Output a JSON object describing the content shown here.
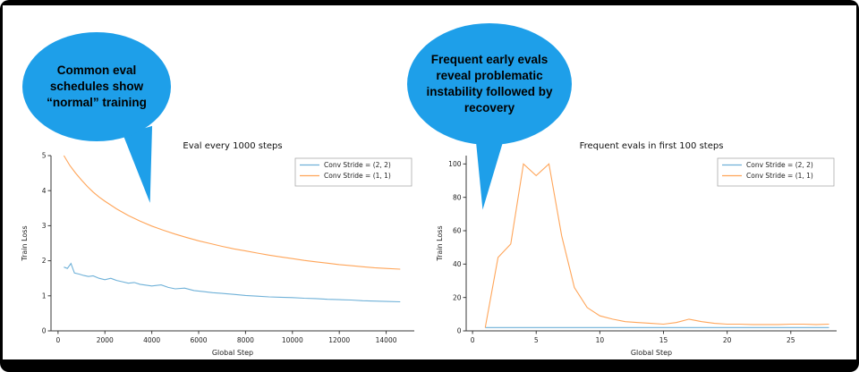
{
  "slide": {
    "background": "#ffffff",
    "frame_color": "#000000"
  },
  "callouts": [
    {
      "text": "Common eval schedules show “normal” training",
      "color": "#1E9FE9"
    },
    {
      "text": "Frequent early evals reveal problematic instability followed by recovery",
      "color": "#1E9FE9"
    }
  ],
  "chart_data": [
    {
      "type": "line",
      "title": "Eval every 1000 steps",
      "xlabel": "Global Step",
      "ylabel": "Train Loss",
      "xlim": [
        -300,
        15200
      ],
      "ylim": [
        0,
        5
      ],
      "xticks": [
        0,
        2000,
        4000,
        6000,
        8000,
        10000,
        12000,
        14000
      ],
      "yticks": [
        0,
        1,
        2,
        3,
        4,
        5
      ],
      "grid": false,
      "legend_position": "upper right",
      "series": [
        {
          "name": "Conv Stride =  (2, 2)",
          "color": "#6fb1d8",
          "x": [
            250,
            400,
            550,
            700,
            900,
            1100,
            1300,
            1500,
            1750,
            2000,
            2250,
            2500,
            2750,
            3000,
            3250,
            3500,
            4000,
            4400,
            4700,
            5000,
            5400,
            5800,
            6200,
            6600,
            7000,
            7500,
            8000,
            8500,
            9000,
            9500,
            10000,
            10500,
            11000,
            11500,
            12000,
            12500,
            13000,
            13500,
            14000,
            14600
          ],
          "y": [
            1.82,
            1.78,
            1.92,
            1.65,
            1.62,
            1.58,
            1.55,
            1.57,
            1.5,
            1.46,
            1.5,
            1.44,
            1.4,
            1.36,
            1.38,
            1.33,
            1.28,
            1.31,
            1.24,
            1.2,
            1.22,
            1.15,
            1.12,
            1.09,
            1.07,
            1.04,
            1.01,
            0.99,
            0.97,
            0.96,
            0.95,
            0.93,
            0.92,
            0.9,
            0.89,
            0.88,
            0.86,
            0.85,
            0.84,
            0.83
          ]
        },
        {
          "name": "Conv Stride =  (1, 1)",
          "color": "#ffa559",
          "x": [
            250,
            500,
            750,
            1000,
            1250,
            1500,
            1750,
            2000,
            2500,
            3000,
            3500,
            4000,
            4500,
            5000,
            5500,
            6000,
            6500,
            7000,
            7500,
            8000,
            8500,
            9000,
            9500,
            10000,
            10500,
            11000,
            11500,
            12000,
            12500,
            13000,
            13500,
            14000,
            14600
          ],
          "y": [
            5.0,
            4.72,
            4.5,
            4.3,
            4.12,
            3.96,
            3.82,
            3.7,
            3.48,
            3.29,
            3.13,
            2.99,
            2.87,
            2.76,
            2.66,
            2.57,
            2.49,
            2.41,
            2.34,
            2.28,
            2.22,
            2.16,
            2.11,
            2.06,
            2.01,
            1.97,
            1.93,
            1.89,
            1.86,
            1.83,
            1.8,
            1.78,
            1.76
          ]
        }
      ]
    },
    {
      "type": "line",
      "title": "Frequent evals in first 100 steps",
      "xlabel": "Global Step",
      "ylabel": "Train Loss",
      "xlim": [
        -0.5,
        28.6
      ],
      "ylim": [
        0,
        105
      ],
      "xticks": [
        0,
        5,
        10,
        15,
        20,
        25
      ],
      "yticks": [
        0,
        20,
        40,
        60,
        80,
        100
      ],
      "grid": false,
      "legend_position": "upper right",
      "series": [
        {
          "name": "Conv Stride =  (2, 2)",
          "color": "#6fb1d8",
          "x": [
            1,
            2,
            3,
            4,
            5,
            6,
            7,
            8,
            9,
            10,
            11,
            12,
            13,
            14,
            15,
            16,
            17,
            18,
            19,
            20,
            21,
            22,
            23,
            24,
            25,
            26,
            27,
            28
          ],
          "y": [
            2,
            2,
            2,
            2,
            2,
            2,
            2,
            2,
            2,
            2,
            2,
            2,
            2,
            2,
            2,
            2,
            2,
            2,
            2,
            2,
            2,
            2,
            2,
            2,
            2,
            2,
            2,
            2
          ]
        },
        {
          "name": "Conv Stride =  (1, 1)",
          "color": "#ffa559",
          "x": [
            1,
            2,
            3,
            4,
            5,
            6,
            7,
            8,
            9,
            10,
            11,
            12,
            13,
            14,
            15,
            16,
            17,
            18,
            19,
            20,
            21,
            22,
            23,
            24,
            25,
            26,
            27,
            28
          ],
          "y": [
            2,
            44,
            52,
            100,
            93,
            100,
            57,
            26,
            14,
            9,
            7,
            5.5,
            5,
            4.5,
            4,
            5,
            7,
            5.5,
            4.5,
            4,
            4,
            3.8,
            3.8,
            3.8,
            4,
            4,
            3.8,
            4
          ]
        }
      ]
    }
  ]
}
